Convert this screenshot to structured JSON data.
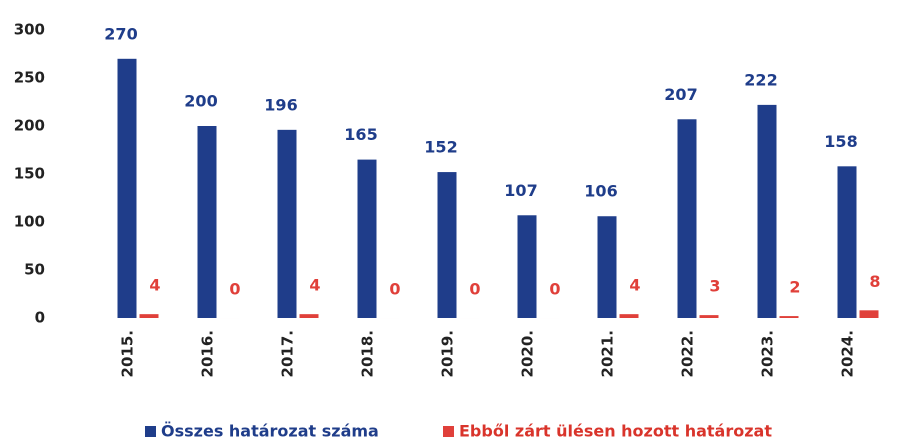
{
  "chart_data": {
    "type": "bar",
    "categories": [
      "2015.",
      "2016.",
      "2017.",
      "2018.",
      "2019.",
      "2020.",
      "2021.",
      "2022.",
      "2023.",
      "2024."
    ],
    "series": [
      {
        "name": "Összes határozat száma",
        "color": "#1f3d8a",
        "values": [
          270,
          200,
          196,
          165,
          152,
          107,
          106,
          207,
          222,
          158
        ]
      },
      {
        "name": "Ebből zárt ülésen hozott határozat",
        "color": "#e0403a",
        "values": [
          4,
          0,
          4,
          0,
          0,
          0,
          4,
          3,
          2,
          8
        ]
      }
    ],
    "ylim": [
      0,
      300
    ],
    "yticks": [
      0,
      50,
      100,
      150,
      200,
      250,
      300
    ],
    "grid": false
  }
}
